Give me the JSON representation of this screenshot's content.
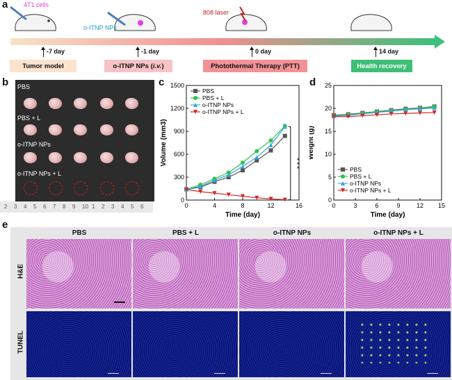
{
  "panel_letters": {
    "a": "a",
    "b": "b",
    "c": "c",
    "d": "d",
    "e": "e"
  },
  "panel_a": {
    "top_labels": {
      "cells": "4T1 cells",
      "nps": "o-ITNP NPs",
      "laser": "808 laser"
    },
    "days": [
      "-7 day",
      "-1 day",
      "0 day",
      "14 day"
    ],
    "stages": [
      "Tumor model",
      "o-ITNP NPs (i.v.)",
      "Photothermal Therapy (PTT)",
      "Health recovery"
    ],
    "colors": {
      "stage1": "#fbe3cd",
      "stage2": "#f6c3c6",
      "stage3": "#f29295",
      "stage4": "#3fbf76",
      "cells": "#e040e0",
      "nps": "#1b9bd0",
      "laser": "#c81e1e"
    }
  },
  "panel_b": {
    "row_labels": [
      "PBS",
      "PBS + L",
      "o-ITNP NPs",
      "o-ITNP NPs + L"
    ],
    "ruler_numbers": [
      "2",
      "3",
      "4",
      "5",
      "6",
      "7",
      "8",
      "9",
      "10",
      "1",
      "2",
      "3",
      "4",
      "5",
      "6"
    ]
  },
  "panel_e": {
    "columns": [
      "PBS",
      "PBS + L",
      "o-ITNP NPs",
      "o-ITNP NPs + L"
    ],
    "rows": [
      "H&E",
      "TUNEL"
    ]
  },
  "chart_data": [
    {
      "type": "line",
      "panel": "c",
      "xlabel": "Time (day)",
      "ylabel": "Volume (mm3)",
      "xlim": [
        0,
        16
      ],
      "ylim": [
        0,
        1500
      ],
      "xticks": [
        0,
        4,
        8,
        12,
        16
      ],
      "yticks": [
        0,
        300,
        600,
        900,
        1200,
        1500
      ],
      "x": [
        0,
        2,
        4,
        6,
        8,
        10,
        12,
        14
      ],
      "series": [
        {
          "name": "PBS",
          "color": "#555555",
          "marker": "square",
          "values": [
            140,
            170,
            240,
            300,
            390,
            520,
            650,
            840
          ]
        },
        {
          "name": "PBS + L",
          "color": "#2ec44a",
          "marker": "circle",
          "values": [
            140,
            200,
            280,
            360,
            490,
            640,
            780,
            970
          ]
        },
        {
          "name": "o-ITNP NPs",
          "color": "#32a8e0",
          "marker": "triangle-up",
          "values": [
            140,
            180,
            260,
            330,
            440,
            560,
            720,
            960
          ]
        },
        {
          "name": "o-ITNP NPs + L",
          "color": "#d12a2a",
          "marker": "triangle-down",
          "values": [
            140,
            110,
            90,
            70,
            50,
            30,
            15,
            5
          ]
        }
      ],
      "annotation": "* * *",
      "legend": "top-left"
    },
    {
      "type": "line",
      "panel": "d",
      "xlabel": "Time (day)",
      "ylabel": "Weight (g)",
      "xlim": [
        0,
        15
      ],
      "ylim": [
        0,
        25
      ],
      "xticks": [
        0,
        3,
        6,
        9,
        12,
        15
      ],
      "yticks": [
        0,
        5,
        10,
        15,
        20,
        25
      ],
      "x": [
        0,
        2,
        4,
        6,
        8,
        10,
        12,
        14
      ],
      "series": [
        {
          "name": "PBS",
          "color": "#555555",
          "marker": "square",
          "values": [
            18.5,
            18.7,
            19.0,
            19.3,
            19.6,
            19.9,
            20.1,
            20.4
          ]
        },
        {
          "name": "PBS + L",
          "color": "#2ec44a",
          "marker": "circle",
          "values": [
            18.4,
            18.6,
            18.9,
            19.2,
            19.5,
            19.8,
            20.0,
            20.3
          ]
        },
        {
          "name": "o-ITNP NPs",
          "color": "#32a8e0",
          "marker": "triangle-up",
          "values": [
            18.3,
            18.5,
            18.8,
            19.1,
            19.4,
            19.7,
            19.9,
            20.1
          ]
        },
        {
          "name": "o-ITNP NPs + L",
          "color": "#d12a2a",
          "marker": "triangle-down",
          "values": [
            18.2,
            18.2,
            18.4,
            18.6,
            18.8,
            18.9,
            19.0,
            19.1
          ]
        }
      ],
      "legend": "bottom-left"
    }
  ]
}
